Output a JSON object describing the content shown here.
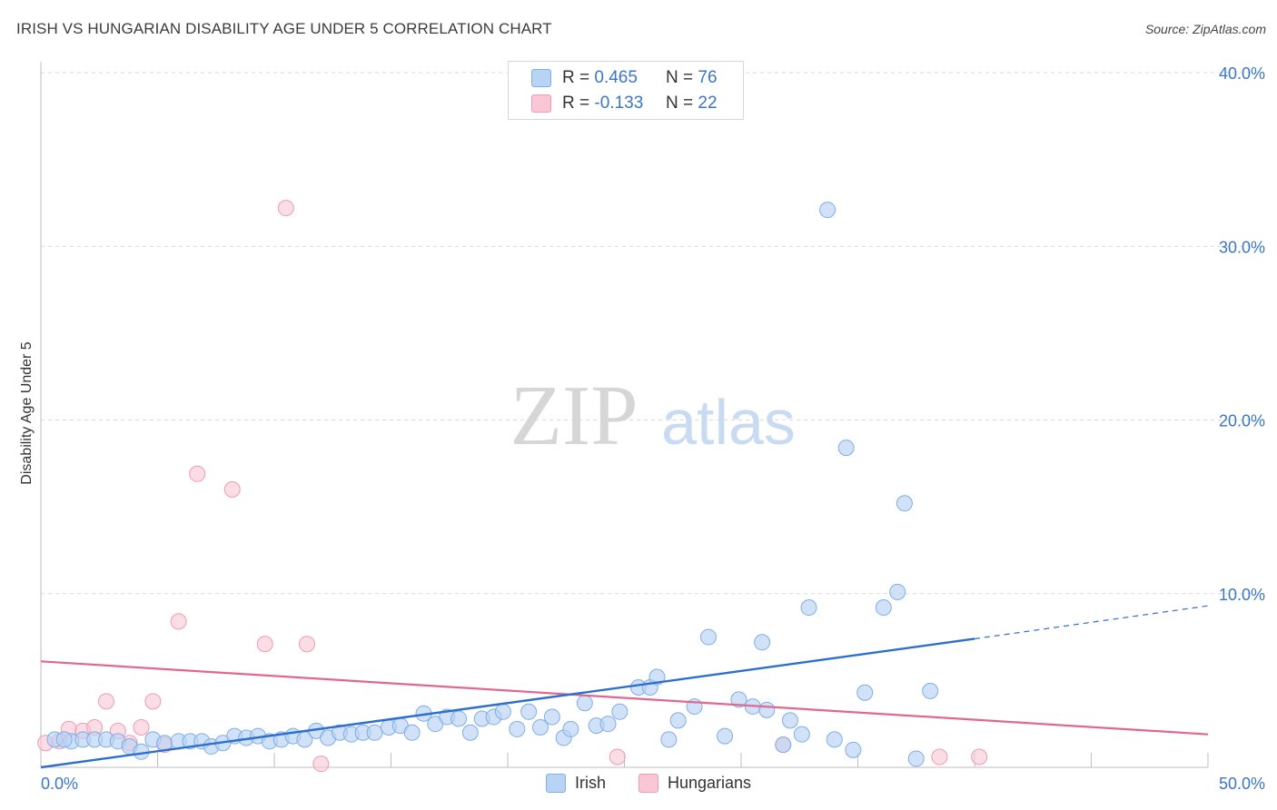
{
  "title": "IRISH VS HUNGARIAN DISABILITY AGE UNDER 5 CORRELATION CHART",
  "source": "Source: ZipAtlas.com",
  "watermark": {
    "zip": "ZIP",
    "atlas": "atlas"
  },
  "legend": {
    "irish": {
      "r_label": "R =",
      "r_value": "0.465",
      "n_label": "N =",
      "n_value": "76"
    },
    "hungarians": {
      "r_label": "R =",
      "r_value": "-0.133",
      "n_label": "N =",
      "n_value": "22"
    }
  },
  "bottom_legend": {
    "irish": "Irish",
    "hungarians": "Hungarians"
  },
  "colors": {
    "irish_fill": "#b8d3f4",
    "irish_stroke": "#7eaee6",
    "irish_line": "#2c6fcf",
    "hung_fill": "#f8c6d4",
    "hung_stroke": "#ef9ab3",
    "hung_line": "#e0688f",
    "tick_label": "#3a76c8",
    "grid": "#d9d9d9"
  },
  "chart_data": {
    "type": "scatter",
    "title": "IRISH VS HUNGARIAN DISABILITY AGE UNDER 5 CORRELATION CHART",
    "xlabel": "",
    "ylabel": "Disability Age Under 5",
    "xlim": [
      0,
      50
    ],
    "ylim": [
      0,
      40
    ],
    "x_tick_labels": [
      "0.0%",
      "50.0%"
    ],
    "y_ticks": [
      10,
      20,
      30,
      40
    ],
    "y_tick_labels": [
      "10.0%",
      "20.0%",
      "30.0%",
      "40.0%"
    ],
    "grid": true,
    "series": [
      {
        "name": "Irish",
        "points": [
          [
            0.6,
            1.6
          ],
          [
            1.3,
            1.5
          ],
          [
            1.8,
            1.6
          ],
          [
            2.3,
            1.6
          ],
          [
            2.8,
            1.6
          ],
          [
            3.3,
            1.5
          ],
          [
            3.8,
            1.2
          ],
          [
            4.3,
            0.9
          ],
          [
            4.8,
            1.6
          ],
          [
            5.3,
            1.4
          ],
          [
            5.9,
            1.5
          ],
          [
            6.4,
            1.5
          ],
          [
            6.9,
            1.5
          ],
          [
            7.3,
            1.2
          ],
          [
            7.8,
            1.4
          ],
          [
            8.3,
            1.8
          ],
          [
            8.8,
            1.7
          ],
          [
            9.3,
            1.8
          ],
          [
            9.8,
            1.5
          ],
          [
            10.3,
            1.6
          ],
          [
            10.8,
            1.8
          ],
          [
            11.3,
            1.6
          ],
          [
            11.8,
            2.1
          ],
          [
            12.3,
            1.7
          ],
          [
            12.8,
            2.0
          ],
          [
            13.3,
            1.9
          ],
          [
            13.8,
            2.0
          ],
          [
            14.3,
            2.0
          ],
          [
            14.9,
            2.3
          ],
          [
            15.4,
            2.4
          ],
          [
            15.9,
            2.0
          ],
          [
            16.4,
            3.1
          ],
          [
            16.9,
            2.5
          ],
          [
            17.4,
            2.9
          ],
          [
            17.9,
            2.8
          ],
          [
            18.4,
            2.0
          ],
          [
            18.9,
            2.8
          ],
          [
            19.4,
            2.9
          ],
          [
            19.8,
            3.2
          ],
          [
            20.4,
            2.2
          ],
          [
            20.9,
            3.2
          ],
          [
            21.4,
            2.3
          ],
          [
            21.9,
            2.9
          ],
          [
            22.4,
            1.7
          ],
          [
            22.7,
            2.2
          ],
          [
            23.3,
            3.7
          ],
          [
            23.8,
            2.4
          ],
          [
            24.3,
            2.5
          ],
          [
            24.8,
            3.2
          ],
          [
            25.6,
            4.6
          ],
          [
            26.1,
            4.6
          ],
          [
            26.4,
            5.2
          ],
          [
            26.9,
            1.6
          ],
          [
            27.3,
            2.7
          ],
          [
            28.0,
            3.5
          ],
          [
            28.6,
            7.5
          ],
          [
            29.3,
            1.8
          ],
          [
            29.9,
            3.9
          ],
          [
            30.5,
            3.5
          ],
          [
            30.9,
            7.2
          ],
          [
            31.1,
            3.3
          ],
          [
            31.8,
            1.3
          ],
          [
            32.1,
            2.7
          ],
          [
            32.6,
            1.9
          ],
          [
            32.9,
            9.2
          ],
          [
            34.0,
            1.6
          ],
          [
            34.8,
            1.0
          ],
          [
            35.3,
            4.3
          ],
          [
            36.1,
            9.2
          ],
          [
            36.7,
            10.1
          ],
          [
            37.5,
            0.5
          ],
          [
            38.1,
            4.4
          ],
          [
            33.7,
            32.1
          ],
          [
            34.5,
            18.4
          ],
          [
            37.0,
            15.2
          ],
          [
            1.0,
            1.6
          ]
        ]
      },
      {
        "name": "Hungarians",
        "points": [
          [
            0.2,
            1.4
          ],
          [
            0.8,
            1.5
          ],
          [
            1.2,
            2.2
          ],
          [
            1.8,
            2.1
          ],
          [
            2.3,
            2.3
          ],
          [
            2.8,
            3.8
          ],
          [
            3.3,
            2.1
          ],
          [
            3.8,
            1.4
          ],
          [
            4.3,
            2.3
          ],
          [
            4.8,
            3.8
          ],
          [
            5.3,
            1.3
          ],
          [
            5.9,
            8.4
          ],
          [
            6.7,
            16.9
          ],
          [
            8.2,
            16.0
          ],
          [
            9.6,
            7.1
          ],
          [
            10.5,
            32.2
          ],
          [
            11.4,
            7.1
          ],
          [
            12.0,
            0.2
          ],
          [
            24.7,
            0.6
          ],
          [
            31.8,
            1.3
          ],
          [
            38.5,
            0.6
          ],
          [
            40.2,
            0.6
          ]
        ]
      }
    ],
    "trend_lines": [
      {
        "name": "Irish",
        "solid": [
          [
            0,
            0
          ],
          [
            40,
            7.4
          ]
        ],
        "dashed": [
          [
            40,
            7.4
          ],
          [
            50,
            9.3
          ]
        ]
      },
      {
        "name": "Hungarians",
        "solid": [
          [
            0,
            6.1
          ],
          [
            50,
            1.9
          ]
        ]
      }
    ]
  }
}
